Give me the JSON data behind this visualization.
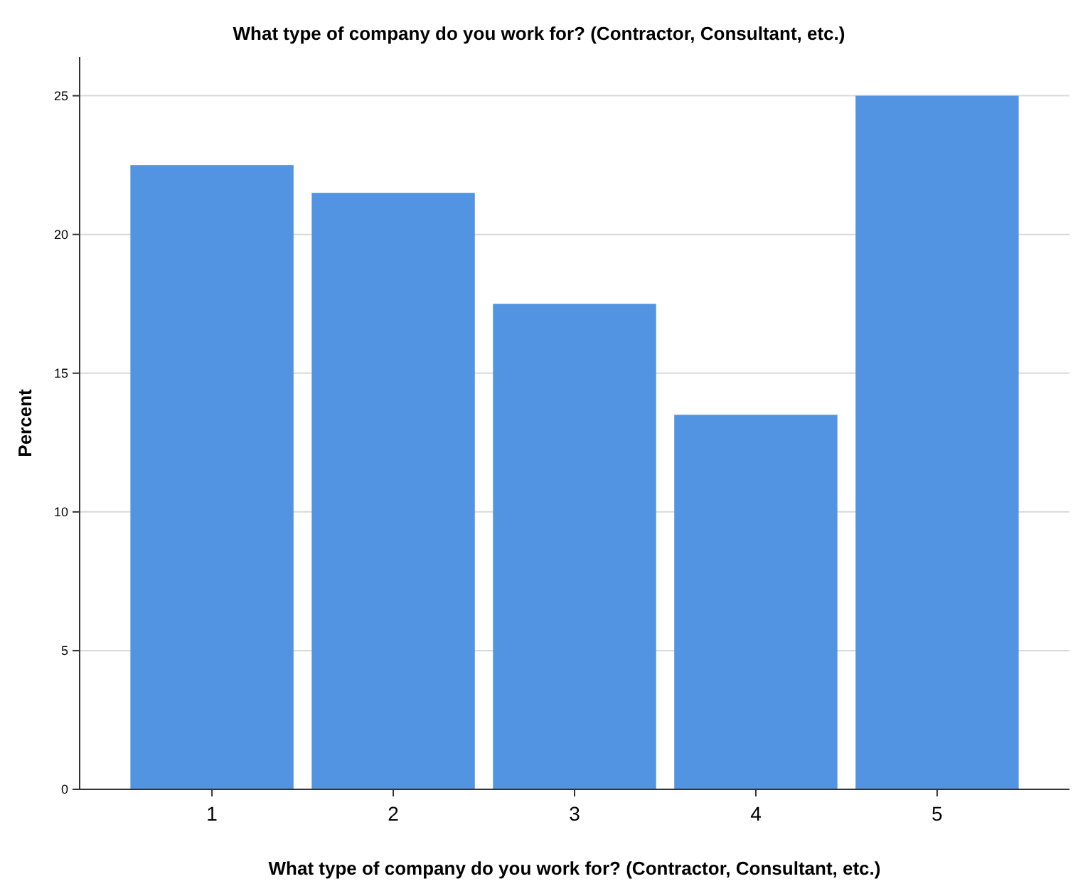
{
  "chart_data": {
    "type": "bar",
    "title": "What type of  company do you work for? (Contractor, Consultant, etc.)",
    "xlabel": "What type of company do you work for? (Contractor, Consultant, etc.)",
    "ylabel": "Percent",
    "categories": [
      "1",
      "2",
      "3",
      "4",
      "5"
    ],
    "values": [
      22.5,
      21.5,
      17.5,
      13.5,
      25
    ],
    "color": "#5294e2",
    "ylim": [
      0,
      26.4
    ],
    "yticks": [
      0,
      5,
      10,
      15,
      20,
      25
    ],
    "grid": "y"
  }
}
